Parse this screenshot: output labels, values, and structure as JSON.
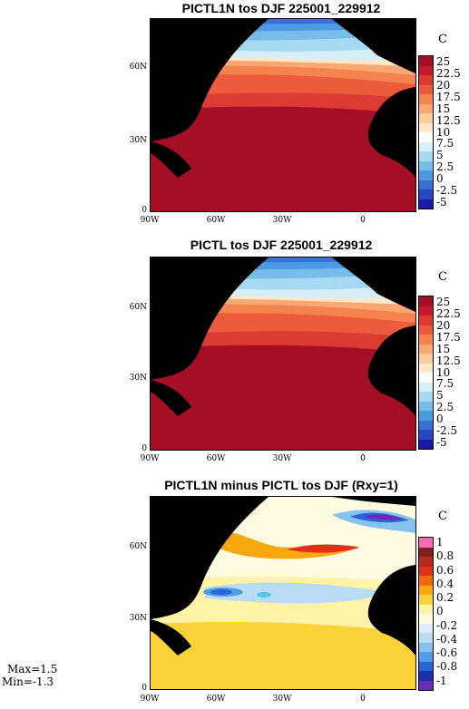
{
  "panels": [
    {
      "title": "PICTL1N tos DJF 225001_229912",
      "unit": "C",
      "y_ticks": [
        "60N",
        "30N",
        "0"
      ],
      "x_ticks": [
        "90W",
        "60W",
        "30W",
        "0"
      ],
      "colorbar": {
        "labels": [
          "25",
          "22.5",
          "20",
          "17.5",
          "15",
          "12.5",
          "10",
          "7.5",
          "5",
          "2.5",
          "0",
          "-2.5",
          "-5"
        ],
        "colors": [
          "#a50f26",
          "#c4182b",
          "#dc3b32",
          "#ec5c3c",
          "#f5834f",
          "#faa873",
          "#fdca9c",
          "#fee8c8",
          "#ffffff",
          "#d6eef8",
          "#a8d9f2",
          "#76bdec",
          "#4e9ae2",
          "#3672d6",
          "#2747c6",
          "#1a1aa6"
        ]
      }
    },
    {
      "title": "PICTL tos DJF 225001_229912",
      "unit": "C",
      "y_ticks": [
        "60N",
        "30N",
        "0"
      ],
      "x_ticks": [
        "90W",
        "60W",
        "30W",
        "0"
      ],
      "colorbar": {
        "labels": [
          "25",
          "22.5",
          "20",
          "17.5",
          "15",
          "12.5",
          "10",
          "7.5",
          "5",
          "2.5",
          "0",
          "-2.5",
          "-5"
        ],
        "colors": [
          "#a50f26",
          "#c4182b",
          "#dc3b32",
          "#ec5c3c",
          "#f5834f",
          "#faa873",
          "#fdca9c",
          "#fee8c8",
          "#ffffff",
          "#d6eef8",
          "#a8d9f2",
          "#76bdec",
          "#4e9ae2",
          "#3672d6",
          "#2747c6",
          "#1a1aa6"
        ]
      }
    },
    {
      "title": "PICTL1N minus PICTL tos DJF (Rxy=1)",
      "unit": "C",
      "y_ticks": [
        "60N",
        "30N",
        "0"
      ],
      "x_ticks": [
        "90W",
        "60W",
        "30W",
        "0"
      ],
      "colorbar": {
        "labels": [
          "1",
          "0.8",
          "0.6",
          "0.4",
          "0.2",
          "0",
          "-0.2",
          "-0.4",
          "-0.6",
          "-0.8",
          "-1"
        ],
        "colors": [
          "#f36fb4",
          "#7f1f1f",
          "#b52a1a",
          "#e0301a",
          "#f26a10",
          "#f7a80e",
          "#fad23a",
          "#fff3a6",
          "#fffbe0",
          "#dfeefa",
          "#b9dcf4",
          "#85c2ee",
          "#4f9be6",
          "#2a63d2",
          "#1a2fa8",
          "#6a2bb8"
        ]
      }
    }
  ],
  "stats": {
    "max": "Max=1.5",
    "min": "Min=-1.3"
  }
}
